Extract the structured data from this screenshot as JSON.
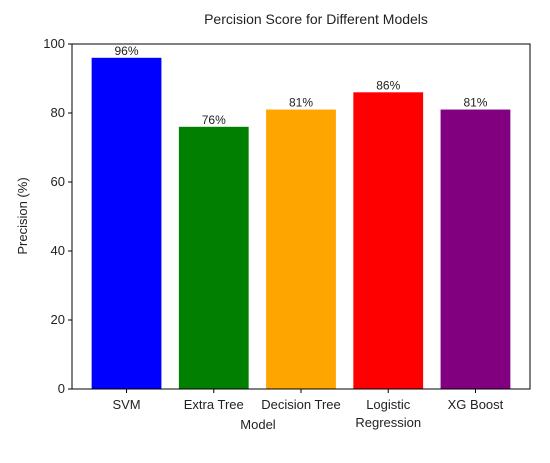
{
  "chart_data": {
    "type": "bar",
    "title": "Percision Score for Different Models",
    "xlabel": "Model",
    "ylabel": "Precision (%)",
    "categories": [
      "SVM",
      "Extra Tree",
      "Decision Tree",
      "Logistic Regression",
      "XG Boost"
    ],
    "category_lines": [
      [
        "SVM"
      ],
      [
        "Extra Tree"
      ],
      [
        "Decision Tree"
      ],
      [
        "Logistic",
        "Regression"
      ],
      [
        "XG Boost"
      ]
    ],
    "values": [
      96,
      76,
      81,
      86,
      81
    ],
    "data_labels": [
      "96%",
      "76%",
      "81%",
      "86%",
      "81%"
    ],
    "colors": [
      "#0000ff",
      "#007f00",
      "#ffa500",
      "#ff0000",
      "#800080"
    ],
    "ylim": [
      0,
      100
    ],
    "yticks": [
      0,
      20,
      40,
      60,
      80,
      100
    ],
    "grid": false,
    "legend": "none"
  }
}
